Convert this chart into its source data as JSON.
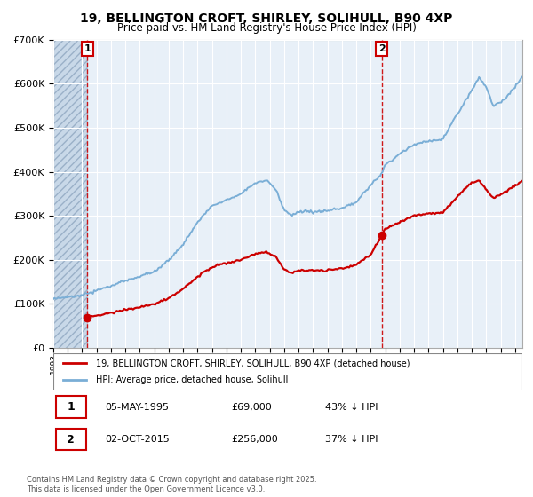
{
  "title": "19, BELLINGTON CROFT, SHIRLEY, SOLIHULL, B90 4XP",
  "subtitle": "Price paid vs. HM Land Registry's House Price Index (HPI)",
  "legend_line1": "19, BELLINGTON CROFT, SHIRLEY, SOLIHULL, B90 4XP (detached house)",
  "legend_line2": "HPI: Average price, detached house, Solihull",
  "footnote": "Contains HM Land Registry data © Crown copyright and database right 2025.\nThis data is licensed under the Open Government Licence v3.0.",
  "point1_date": "05-MAY-1995",
  "point1_price": "£69,000",
  "point1_hpi": "43% ↓ HPI",
  "point1_year": 1995.35,
  "point1_value": 69000,
  "point2_date": "02-OCT-2015",
  "point2_price": "£256,000",
  "point2_hpi": "37% ↓ HPI",
  "point2_year": 2015.75,
  "point2_value": 256000,
  "red_color": "#cc0000",
  "blue_color": "#7aaed6",
  "ylim": [
    0,
    700000
  ],
  "xlim_start": 1993.0,
  "xlim_end": 2025.5
}
